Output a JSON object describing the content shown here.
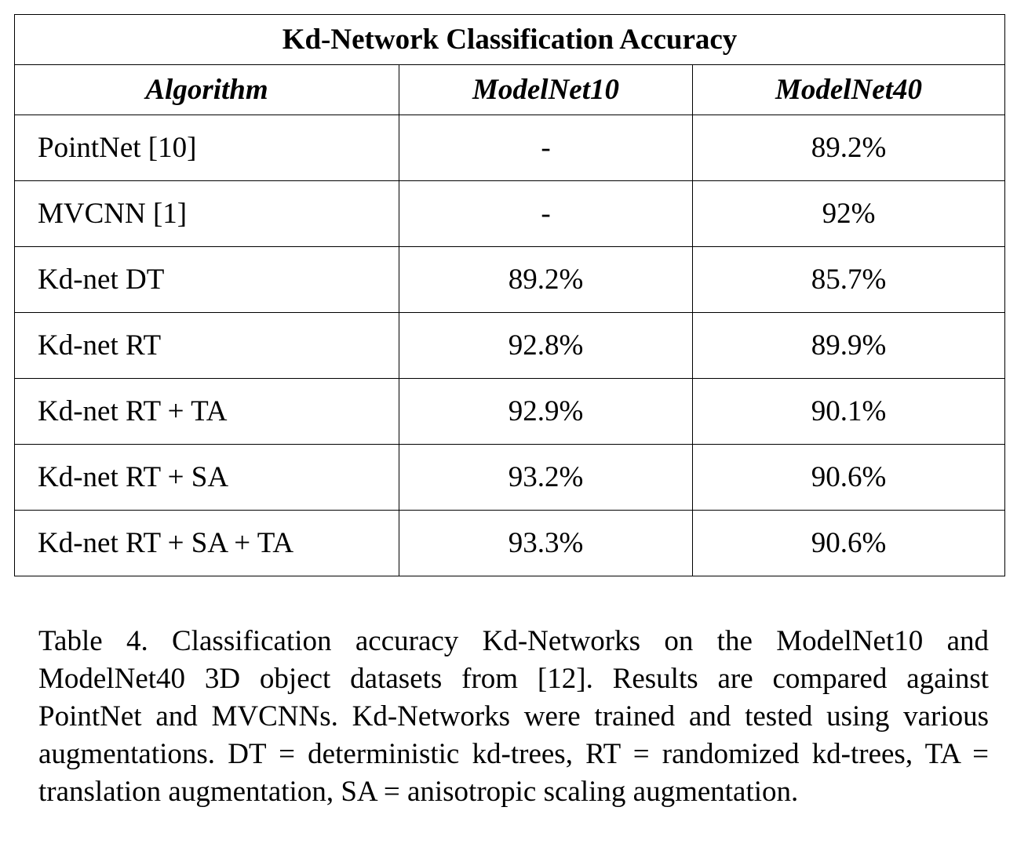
{
  "table": {
    "title": "Kd-Network Classification Accuracy",
    "headers": [
      "Algorithm",
      "ModelNet10",
      "ModelNet40"
    ],
    "rows": [
      {
        "algorithm": "PointNet [10]",
        "modelnet10": "-",
        "modelnet40": "89.2%"
      },
      {
        "algorithm": "MVCNN [1]",
        "modelnet10": "-",
        "modelnet40": "92%"
      },
      {
        "algorithm": "Kd-net DT",
        "modelnet10": "89.2%",
        "modelnet40": "85.7%"
      },
      {
        "algorithm": "Kd-net RT",
        "modelnet10": "92.8%",
        "modelnet40": "89.9%"
      },
      {
        "algorithm": "Kd-net RT + TA",
        "modelnet10": "92.9%",
        "modelnet40": "90.1%"
      },
      {
        "algorithm": "Kd-net RT + SA",
        "modelnet10": "93.2%",
        "modelnet40": "90.6%"
      },
      {
        "algorithm": "Kd-net RT + SA + TA",
        "modelnet10": "93.3%",
        "modelnet40": "90.6%"
      }
    ]
  },
  "caption": "Table 4. Classification accuracy Kd-Networks on the ModelNet10 and ModelNet40 3D object datasets from [12]. Results are compared against PointNet and MVCNNs. Kd-Networks were trained and tested using various augmentations. DT = deterministic kd-trees, RT = randomized kd-trees, TA = translation augmentation, SA = anisotropic scaling augmentation."
}
